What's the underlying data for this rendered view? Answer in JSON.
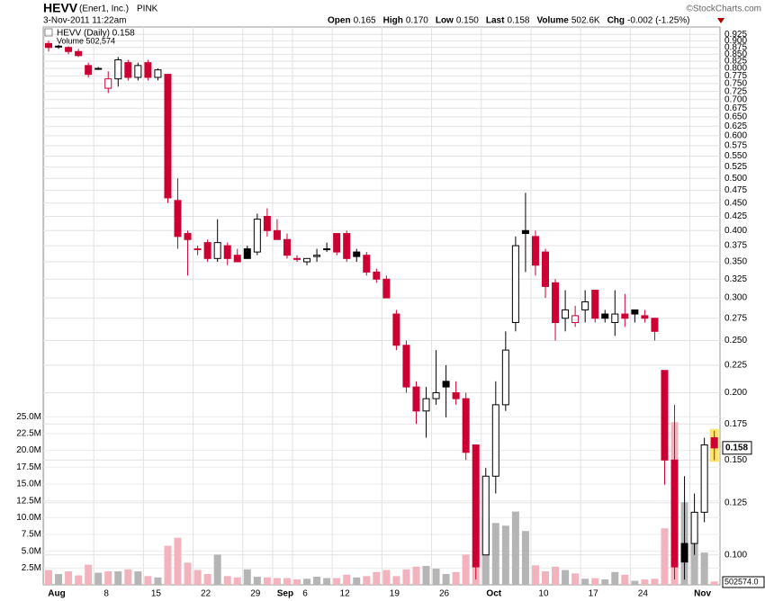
{
  "header": {
    "symbol": "HEVV",
    "company": "(Ener1, Inc.)",
    "exchange": "PINK",
    "source": "©StockCharts.com",
    "date": "3-Nov-2011 11:22am",
    "quote": [
      [
        "Open",
        "0.165"
      ],
      [
        "High",
        "0.170"
      ],
      [
        "Low",
        "0.150"
      ],
      [
        "Last",
        "0.158"
      ],
      [
        "Volume",
        "502.6K"
      ],
      [
        "Chg",
        "-0.002 (-1.25%)"
      ]
    ]
  },
  "chart_data": {
    "type": "candlestick",
    "legend": [
      "HEVV (Daily) 0.158",
      "Volume 502,574"
    ],
    "categories": [
      "Aug",
      null,
      null,
      null,
      null,
      "8",
      null,
      null,
      null,
      null,
      "15",
      null,
      null,
      null,
      null,
      "22",
      null,
      null,
      null,
      null,
      "29",
      null,
      null,
      "Sep",
      null,
      "6",
      null,
      null,
      null,
      "12",
      null,
      null,
      null,
      null,
      "19",
      null,
      null,
      null,
      null,
      "26",
      null,
      null,
      null,
      null,
      "Oct",
      null,
      null,
      null,
      null,
      "10",
      null,
      null,
      null,
      null,
      "17",
      null,
      null,
      null,
      null,
      "24",
      null,
      null,
      null,
      null,
      null,
      "Nov",
      null,
      null
    ],
    "price": {
      "open": [
        0.89,
        0.88,
        0.875,
        0.86,
        0.81,
        0.8,
        0.735,
        0.765,
        0.82,
        0.77,
        0.82,
        0.77,
        0.78,
        0.455,
        0.395,
        0.37,
        0.38,
        0.355,
        0.375,
        0.36,
        0.37,
        0.365,
        0.425,
        0.4,
        0.385,
        0.355,
        0.35,
        0.358,
        0.37,
        0.395,
        0.395,
        0.365,
        0.36,
        0.335,
        0.325,
        0.28,
        0.245,
        0.205,
        0.185,
        0.195,
        0.21,
        0.2,
        0.195,
        0.16,
        0.1,
        0.14,
        0.19,
        0.27,
        0.4,
        0.39,
        0.365,
        0.32,
        0.275,
        0.27,
        0.285,
        0.31,
        0.28,
        0.27,
        0.28,
        0.285,
        0.278,
        0.275,
        0.22,
        0.15,
        0.105,
        0.105,
        0.12,
        0.165
      ],
      "high": [
        0.9,
        0.885,
        0.88,
        0.87,
        0.82,
        0.805,
        0.79,
        0.84,
        0.83,
        0.82,
        0.83,
        0.8,
        0.78,
        0.5,
        0.4,
        0.375,
        0.385,
        0.42,
        0.38,
        0.37,
        0.375,
        0.43,
        0.44,
        0.42,
        0.395,
        0.36,
        0.355,
        0.37,
        0.38,
        0.395,
        0.4,
        0.37,
        0.365,
        0.34,
        0.33,
        0.285,
        0.25,
        0.21,
        0.205,
        0.24,
        0.225,
        0.21,
        0.2,
        0.16,
        0.145,
        0.21,
        0.26,
        0.39,
        0.47,
        0.4,
        0.37,
        0.325,
        0.31,
        0.29,
        0.31,
        0.31,
        0.285,
        0.31,
        0.305,
        0.285,
        0.285,
        0.275,
        0.22,
        0.19,
        0.14,
        0.13,
        0.165,
        0.17
      ],
      "low": [
        0.86,
        0.87,
        0.85,
        0.84,
        0.77,
        0.795,
        0.72,
        0.74,
        0.76,
        0.76,
        0.76,
        0.76,
        0.45,
        0.37,
        0.33,
        0.36,
        0.35,
        0.35,
        0.345,
        0.35,
        0.355,
        0.36,
        0.39,
        0.385,
        0.355,
        0.35,
        0.345,
        0.35,
        0.365,
        0.36,
        0.35,
        0.35,
        0.33,
        0.32,
        0.3,
        0.24,
        0.2,
        0.175,
        0.165,
        0.19,
        0.18,
        0.19,
        0.15,
        0.09,
        0.1,
        0.13,
        0.185,
        0.26,
        0.335,
        0.33,
        0.3,
        0.25,
        0.26,
        0.265,
        0.27,
        0.27,
        0.27,
        0.255,
        0.265,
        0.27,
        0.27,
        0.25,
        0.135,
        0.09,
        0.09,
        0.1,
        0.115,
        0.15
      ],
      "close": [
        0.875,
        0.88,
        0.86,
        0.845,
        0.78,
        0.8,
        0.765,
        0.83,
        0.77,
        0.81,
        0.77,
        0.795,
        0.46,
        0.39,
        0.385,
        0.37,
        0.355,
        0.38,
        0.355,
        0.35,
        0.355,
        0.42,
        0.4,
        0.385,
        0.36,
        0.355,
        0.355,
        0.36,
        0.37,
        0.365,
        0.355,
        0.358,
        0.335,
        0.325,
        0.3,
        0.245,
        0.205,
        0.185,
        0.195,
        0.2,
        0.205,
        0.195,
        0.155,
        0.095,
        0.14,
        0.19,
        0.24,
        0.375,
        0.395,
        0.345,
        0.315,
        0.27,
        0.285,
        0.278,
        0.295,
        0.275,
        0.275,
        0.28,
        0.275,
        0.28,
        0.275,
        0.26,
        0.15,
        0.095,
        0.097,
        0.12,
        0.16,
        0.158
      ]
    },
    "volume": [
      2.2,
      1.6,
      2.0,
      1.4,
      3.0,
      1.8,
      2.0,
      2.0,
      2.3,
      2.0,
      1.3,
      1.1,
      5.8,
      7.0,
      3.3,
      2.2,
      1.6,
      4.5,
      1.3,
      1.1,
      2.3,
      1.2,
      1.1,
      1.0,
      1.0,
      0.8,
      0.9,
      1.2,
      1.0,
      1.0,
      1.5,
      1.1,
      1.3,
      1.9,
      2.2,
      1.3,
      2.3,
      2.7,
      2.8,
      2.4,
      1.6,
      1.9,
      4.5,
      5.2,
      10.0,
      9.2,
      8.8,
      10.9,
      8.0,
      2.9,
      2.0,
      2.7,
      2.2,
      1.7,
      0.9,
      1.0,
      0.8,
      1.9,
      1.5,
      0.6,
      0.8,
      0.9,
      8.4,
      24.2,
      12.3,
      7.5,
      4.8,
      0.502574
    ],
    "volume_last_label": "502574.0",
    "ylim": [
      0.088,
      0.955
    ],
    "log_scale": true,
    "yticks": [
      {
        "value": 0.1,
        "label": "0.100"
      },
      {
        "value": 0.125,
        "label": "0.125"
      },
      {
        "value": 0.15,
        "label": "0.150"
      },
      {
        "value": 0.175,
        "label": "0.175"
      },
      {
        "value": 0.2,
        "label": "0.200"
      },
      {
        "value": 0.225,
        "label": "0.225"
      },
      {
        "value": 0.25,
        "label": "0.250"
      },
      {
        "value": 0.275,
        "label": "0.275"
      },
      {
        "value": 0.3,
        "label": "0.300"
      },
      {
        "value": 0.325,
        "label": "0.325"
      },
      {
        "value": 0.35,
        "label": "0.350"
      },
      {
        "value": 0.375,
        "label": "0.375"
      },
      {
        "value": 0.4,
        "label": "0.400"
      },
      {
        "value": 0.425,
        "label": "0.425"
      },
      {
        "value": 0.45,
        "label": "0.450"
      },
      {
        "value": 0.475,
        "label": "0.475"
      },
      {
        "value": 0.5,
        "label": "0.500"
      },
      {
        "value": 0.525,
        "label": "0.525"
      },
      {
        "value": 0.55,
        "label": "0.550"
      },
      {
        "value": 0.575,
        "label": "0.575"
      },
      {
        "value": 0.6,
        "label": "0.600"
      },
      {
        "value": 0.625,
        "label": "0.625"
      },
      {
        "value": 0.65,
        "label": "0.650"
      },
      {
        "value": 0.675,
        "label": "0.675"
      },
      {
        "value": 0.7,
        "label": "0.700"
      },
      {
        "value": 0.725,
        "label": "0.725"
      },
      {
        "value": 0.75,
        "label": "0.750"
      },
      {
        "value": 0.775,
        "label": "0.775"
      },
      {
        "value": 0.8,
        "label": "0.800"
      },
      {
        "value": 0.825,
        "label": "0.825"
      },
      {
        "value": 0.85,
        "label": "0.850"
      },
      {
        "value": 0.875,
        "label": "0.875"
      },
      {
        "value": 0.9,
        "label": "0.900"
      },
      {
        "value": 0.925,
        "label": "0.925"
      }
    ],
    "y2lim": [
      0,
      83
    ],
    "y2ticks": [
      {
        "value": 2.5,
        "label": "2.5M"
      },
      {
        "value": 5,
        "label": "5.0M"
      },
      {
        "value": 7.5,
        "label": "7.5M"
      },
      {
        "value": 10,
        "label": "10.0M"
      },
      {
        "value": 12.5,
        "label": "12.5M"
      },
      {
        "value": 15,
        "label": "15.0M"
      },
      {
        "value": 17.5,
        "label": "17.5M"
      },
      {
        "value": 20,
        "label": "20.0M"
      },
      {
        "value": 22.5,
        "label": "22.5M"
      },
      {
        "value": 25,
        "label": "25.0M"
      }
    ],
    "grid": true,
    "up_color": "#000000",
    "down_color": "#cc0033",
    "volume_up_color": "#b5b5b5",
    "volume_down_color": "#f2b3be",
    "highlight_color": "#ffe566"
  }
}
